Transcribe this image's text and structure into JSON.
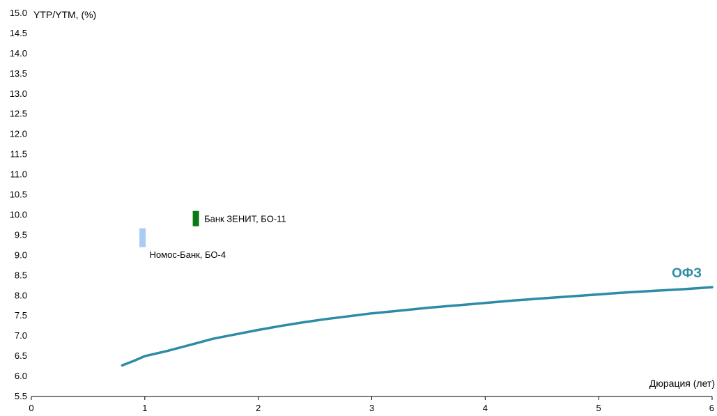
{
  "chart_data": {
    "type": "line",
    "ylabel": "YTP/YTM, (%)",
    "xlabel": "Дюрация (лет)",
    "xlim": [
      0,
      6
    ],
    "ylim": [
      5.5,
      15.0
    ],
    "x_ticks": [
      "0",
      "1",
      "2",
      "3",
      "4",
      "5",
      "6"
    ],
    "y_ticks": [
      "5.5",
      "6.0",
      "6.5",
      "7.0",
      "7.5",
      "8.0",
      "8.5",
      "9.0",
      "9.5",
      "10.0",
      "10.5",
      "11.0",
      "11.5",
      "12.0",
      "12.5",
      "13.0",
      "13.5",
      "14.0",
      "14.5",
      "15.0"
    ],
    "grid": false,
    "series": [
      {
        "name": "ОФЗ",
        "color": "#2E8BA6",
        "points": [
          {
            "x": 0.8,
            "y": 6.27
          },
          {
            "x": 0.9,
            "y": 6.38
          },
          {
            "x": 1.0,
            "y": 6.5
          },
          {
            "x": 1.2,
            "y": 6.63
          },
          {
            "x": 1.4,
            "y": 6.78
          },
          {
            "x": 1.6,
            "y": 6.93
          },
          {
            "x": 1.8,
            "y": 7.04
          },
          {
            "x": 2.0,
            "y": 7.15
          },
          {
            "x": 2.2,
            "y": 7.25
          },
          {
            "x": 2.4,
            "y": 7.34
          },
          {
            "x": 2.6,
            "y": 7.42
          },
          {
            "x": 2.8,
            "y": 7.49
          },
          {
            "x": 3.0,
            "y": 7.56
          },
          {
            "x": 3.25,
            "y": 7.63
          },
          {
            "x": 3.5,
            "y": 7.7
          },
          {
            "x": 3.75,
            "y": 7.76
          },
          {
            "x": 4.0,
            "y": 7.82
          },
          {
            "x": 4.25,
            "y": 7.88
          },
          {
            "x": 4.5,
            "y": 7.93
          },
          {
            "x": 4.75,
            "y": 7.98
          },
          {
            "x": 5.0,
            "y": 8.03
          },
          {
            "x": 5.25,
            "y": 8.08
          },
          {
            "x": 5.5,
            "y": 8.12
          },
          {
            "x": 5.75,
            "y": 8.16
          },
          {
            "x": 6.0,
            "y": 8.21
          }
        ]
      }
    ],
    "bonds": [
      {
        "name": "Банк ЗЕНИТ, БО-11",
        "x": 1.45,
        "y_low": 9.72,
        "y_high": 10.1,
        "color": "#0A7A14",
        "label_position": "right"
      },
      {
        "name": "Номос-Банк, БО-4",
        "x": 0.98,
        "y_low": 9.2,
        "y_high": 9.67,
        "color": "#A9CDF2",
        "label_position": "below-right"
      }
    ]
  }
}
